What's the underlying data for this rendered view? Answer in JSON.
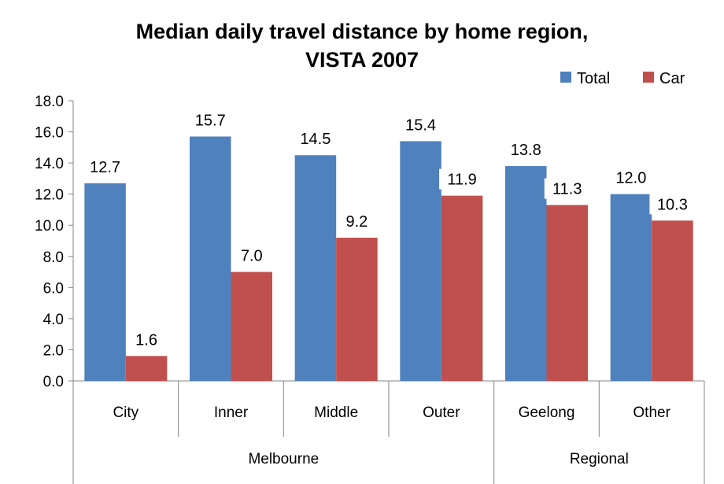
{
  "chart_data": {
    "type": "bar",
    "title_lines": [
      "Median daily travel distance by home region,",
      "VISTA 2007"
    ],
    "categories": [
      "City",
      "Inner",
      "Middle",
      "Outer",
      "Geelong",
      "Other"
    ],
    "groups": [
      {
        "label": "Melbourne",
        "categories": [
          "City",
          "Inner",
          "Middle",
          "Outer"
        ]
      },
      {
        "label": "Regional",
        "categories": [
          "Geelong",
          "Other"
        ]
      }
    ],
    "series": [
      {
        "name": "Total",
        "color": "#4F81BD",
        "values": [
          12.7,
          15.7,
          14.5,
          15.4,
          13.8,
          12.0
        ]
      },
      {
        "name": "Car",
        "color": "#C0504D",
        "values": [
          1.6,
          7.0,
          9.2,
          11.9,
          11.3,
          10.3
        ]
      }
    ],
    "ylim": [
      0,
      18
    ],
    "yticks": [
      "0.0",
      "2.0",
      "4.0",
      "6.0",
      "8.0",
      "10.0",
      "12.0",
      "14.0",
      "16.0",
      "18.0"
    ],
    "data_labels": [
      [
        "12.7",
        "15.7",
        "14.5",
        "15.4",
        "13.8",
        "12.0"
      ],
      [
        "1.6",
        "7.0",
        "9.2",
        "11.9",
        "11.3",
        "10.3"
      ]
    ],
    "legend_position": "top-right",
    "grid": false
  }
}
